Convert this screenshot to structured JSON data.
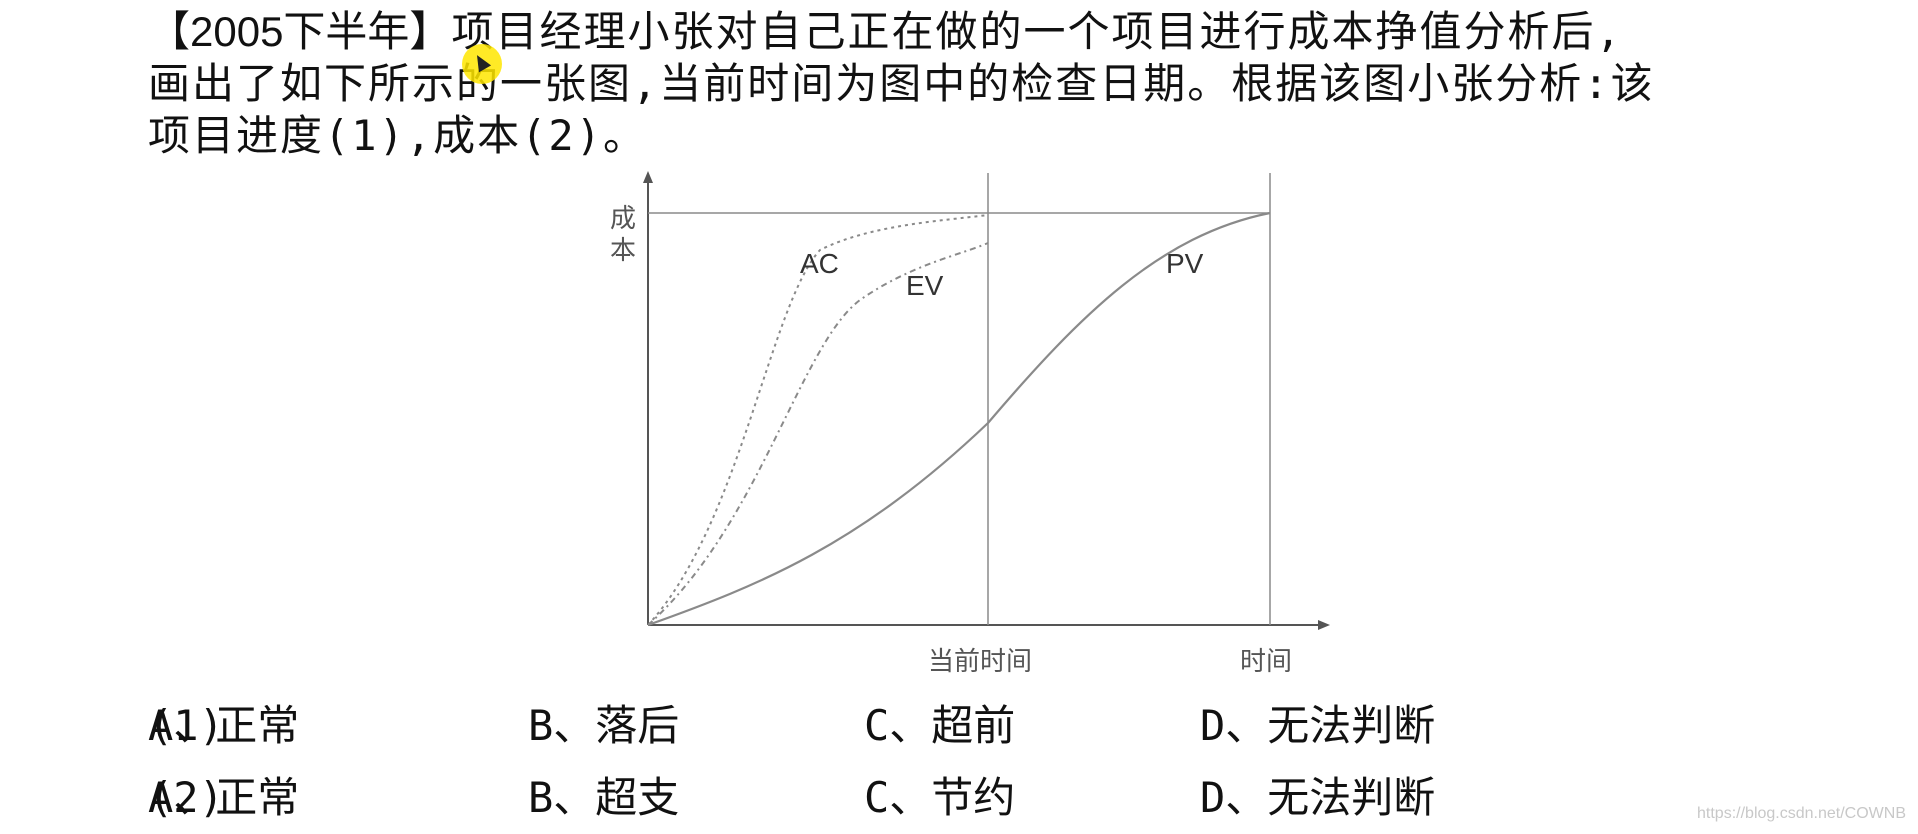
{
  "question": {
    "tag": "【2005下半年】",
    "line1_rest": "项目经理小张对自己正在做的一个项目进行成本挣值分析后,",
    "line2": "画出了如下所示的一张图,当前时间为图中的检查日期。根据该图小张分析:该",
    "line3": "项目进度(1),成本(2)。"
  },
  "chart_data": {
    "type": "line",
    "ylabel": "成本",
    "x_tick_labels": [
      "当前时间",
      "时间"
    ],
    "series": [
      {
        "name": "AC",
        "style": "dotted"
      },
      {
        "name": "EV",
        "style": "dash-dot"
      },
      {
        "name": "PV",
        "style": "solid"
      }
    ],
    "grid": false
  },
  "options": [
    {
      "q": "(1)",
      "a": "A、正常",
      "b": "B、落后",
      "c": "C、超前",
      "d": "D、无法判断"
    },
    {
      "q": "(2)",
      "a": "A、正常",
      "b": "B、超支",
      "c": "C、节约",
      "d": "D、无法判断"
    }
  ],
  "watermark": "https://blog.csdn.net/COWNB",
  "colors": {
    "line": "#8a8a8a",
    "axis": "#555555",
    "label": "#555555",
    "cursor": "#ffe600"
  }
}
